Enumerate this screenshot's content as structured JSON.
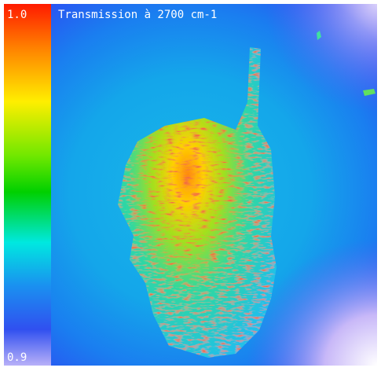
{
  "title": "Transmission à 2700 cm-1",
  "colorbar": {
    "max_label": "1.0",
    "min_label": "0.9"
  }
}
